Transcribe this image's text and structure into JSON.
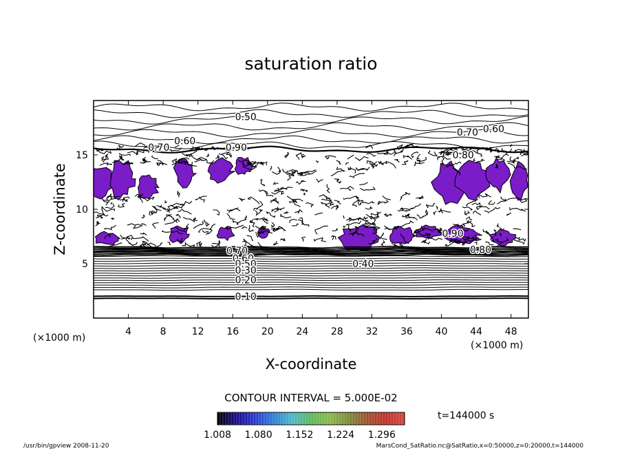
{
  "chart_data": {
    "type": "contour",
    "title": "saturation ratio",
    "xlabel": "X-coordinate",
    "ylabel": "Z-coordinate",
    "x_unit_left": "(×1000 m)",
    "x_unit_right": "(×1000 m)",
    "xlim": [
      0,
      50
    ],
    "ylim": [
      0,
      20
    ],
    "x_ticks": [
      4,
      8,
      12,
      16,
      20,
      24,
      28,
      32,
      36,
      40,
      44,
      48
    ],
    "x_tick_labels": [
      "4",
      "8",
      "12",
      "16",
      "20",
      "24",
      "28",
      "32",
      "36",
      "40",
      "44",
      "48"
    ],
    "y_ticks": [
      5,
      10,
      15
    ],
    "y_tick_labels": [
      "5",
      "10",
      "15"
    ],
    "contour_labels": [
      {
        "text": "0.50",
        "x": 17.5,
        "z": 18.5
      },
      {
        "text": "0.60",
        "x": 46.0,
        "z": 17.4
      },
      {
        "text": "0.70",
        "x": 43.0,
        "z": 17.1
      },
      {
        "text": "0.60",
        "x": 10.5,
        "z": 16.3
      },
      {
        "text": "0.70",
        "x": 7.5,
        "z": 15.7
      },
      {
        "text": "0.90",
        "x": 16.4,
        "z": 15.7
      },
      {
        "text": "0.80",
        "x": 42.5,
        "z": 15.0
      },
      {
        "text": "0.70",
        "x": 16.5,
        "z": 6.2
      },
      {
        "text": "0.60",
        "x": 17.2,
        "z": 5.5
      },
      {
        "text": "0.50",
        "x": 17.5,
        "z": 5.0
      },
      {
        "text": "0.40",
        "x": 31.0,
        "z": 5.0
      },
      {
        "text": "0.30",
        "x": 17.5,
        "z": 4.4
      },
      {
        "text": "0.20",
        "x": 17.5,
        "z": 3.5
      },
      {
        "text": "0.10",
        "x": 17.5,
        "z": 2.0
      },
      {
        "text": "0.90",
        "x": 41.3,
        "z": 7.8
      },
      {
        "text": "0.80",
        "x": 44.5,
        "z": 6.3
      }
    ],
    "shaded_threshold": 1.0,
    "contour_interval_label": "CONTOUR INTERVAL = 5.000E-02",
    "colorbar": {
      "min": 1.008,
      "max": 1.336,
      "tick_labels": [
        "1.008",
        "1.080",
        "1.152",
        "1.224",
        "1.296"
      ],
      "gradient": [
        "#000000",
        "#1a0a8a",
        "#2a3ad0",
        "#2f7fd8",
        "#4ab8c8",
        "#5ab85a",
        "#8ab84a",
        "#7a8a3a",
        "#a05030",
        "#c03028",
        "#d04840"
      ]
    },
    "time_label": "t=144000 s",
    "fill_color": "#7a1cc8",
    "grid": false,
    "legend": "none"
  },
  "footer": {
    "left": "/usr/bin/gpview   2008-11-20",
    "right": "MarsCond_SatRatio.nc@SatRatio,x=0:50000,z=0:20000,t=144000"
  }
}
